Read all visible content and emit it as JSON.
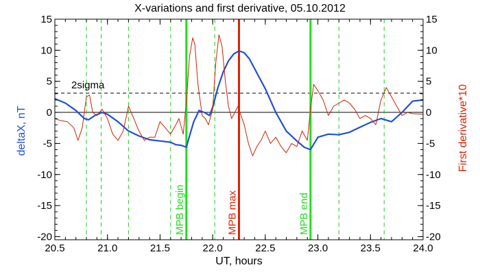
{
  "chart_data": {
    "type": "line",
    "title": "X-variations and first derivative, 05.10.2012",
    "xlabel": "UT, hours",
    "ylabel_left": "deltaX, nT",
    "ylabel_right": "First derivative*10",
    "xlim": [
      20.5,
      24.0
    ],
    "ylim": [
      -20.5,
      15
    ],
    "x_ticks": [
      20.5,
      21.0,
      21.5,
      22.0,
      22.5,
      23.0,
      23.5,
      24.0
    ],
    "x_tick_labels": [
      "20.5",
      "21.0",
      "21.5",
      "22.0",
      "22.5",
      "23.0",
      "23.5",
      "24.0"
    ],
    "y_ticks": [
      -20,
      -15,
      -10,
      -5,
      0,
      5,
      10,
      15
    ],
    "y_tick_labels": [
      "-20",
      "-15",
      "-10",
      "-5",
      "0",
      "5",
      "10",
      "15"
    ],
    "sigma_level": 3.1,
    "sigma_label": "2sigma",
    "colors": {
      "deltaX": "#1f4fd6",
      "derivative": "#cc2200",
      "mpb": "#22dd22",
      "max": "#dd2200",
      "dashed": "#22cc22"
    },
    "dashed_lines": [
      20.8,
      20.94,
      21.2,
      21.6,
      22.02,
      23.2,
      23.63
    ],
    "markers": [
      {
        "x": 21.75,
        "label": "MPB begin",
        "kind": "mpb"
      },
      {
        "x": 22.25,
        "label": "MPB max",
        "kind": "max"
      },
      {
        "x": 22.93,
        "label": "MPB end",
        "kind": "mpb"
      }
    ],
    "series": [
      {
        "name": "deltaX, nT",
        "x": [
          20.5,
          20.6,
          20.7,
          20.78,
          20.82,
          20.88,
          20.95,
          21.0,
          21.1,
          21.2,
          21.3,
          21.4,
          21.5,
          21.6,
          21.65,
          21.7,
          21.75,
          21.78,
          21.82,
          21.87,
          21.92,
          21.97,
          22.0,
          22.05,
          22.1,
          22.15,
          22.2,
          22.25,
          22.3,
          22.35,
          22.4,
          22.5,
          22.6,
          22.7,
          22.8,
          22.87,
          22.93,
          23.0,
          23.1,
          23.2,
          23.3,
          23.4,
          23.5,
          23.6,
          23.7,
          23.8,
          23.9,
          24.0
        ],
        "y": [
          2.2,
          1.5,
          0.3,
          -1.0,
          -1.2,
          -0.5,
          0.0,
          -0.3,
          -1.5,
          -3.0,
          -3.8,
          -4.4,
          -4.6,
          -4.8,
          -5.2,
          -5.3,
          -5.6,
          -3.8,
          -1.5,
          0.3,
          0.0,
          -0.5,
          0.8,
          4.0,
          6.5,
          8.3,
          9.4,
          9.9,
          9.6,
          8.6,
          7.0,
          3.8,
          0.0,
          -3.0,
          -4.6,
          -5.6,
          -6.0,
          -4.0,
          -3.5,
          -3.6,
          -3.2,
          -2.4,
          -1.6,
          -1.0,
          -1.5,
          0.0,
          1.8,
          2.0
        ]
      },
      {
        "name": "First derivative*10",
        "x": [
          20.5,
          20.55,
          20.62,
          20.68,
          20.72,
          20.76,
          20.8,
          20.83,
          20.86,
          20.9,
          20.95,
          21.0,
          21.05,
          21.1,
          21.15,
          21.2,
          21.25,
          21.3,
          21.35,
          21.4,
          21.45,
          21.5,
          21.55,
          21.6,
          21.65,
          21.68,
          21.72,
          21.75,
          21.78,
          21.81,
          21.83,
          21.86,
          21.9,
          21.93,
          21.96,
          22.0,
          22.03,
          22.06,
          22.09,
          22.12,
          22.15,
          22.18,
          22.21,
          22.24,
          22.27,
          22.3,
          22.34,
          22.38,
          22.42,
          22.46,
          22.5,
          22.55,
          22.6,
          22.65,
          22.7,
          22.75,
          22.8,
          22.85,
          22.9,
          22.93,
          22.96,
          23.0,
          23.05,
          23.1,
          23.15,
          23.2,
          23.25,
          23.3,
          23.35,
          23.4,
          23.45,
          23.5,
          23.55,
          23.6,
          23.65,
          23.7,
          23.75,
          23.8,
          23.85,
          23.9,
          24.0
        ],
        "y": [
          -1.0,
          -1.3,
          -1.5,
          -2.5,
          -4.5,
          -2.5,
          2.5,
          2.8,
          0.0,
          -0.5,
          0.5,
          -1.0,
          -3.5,
          -4.5,
          -3.0,
          1.0,
          -1.0,
          -3.0,
          -4.5,
          -4.0,
          -4.0,
          -1.5,
          -2.5,
          -3.5,
          -2.0,
          -1.0,
          -3.5,
          1.8,
          9.0,
          12.0,
          11.0,
          4.5,
          -0.5,
          -1.0,
          -2.0,
          0.5,
          8.0,
          12.5,
          10.5,
          5.0,
          1.0,
          -1.0,
          0.0,
          1.0,
          -0.5,
          -2.0,
          -5.0,
          -7.0,
          -5.5,
          -4.5,
          -3.0,
          -5.0,
          -4.0,
          -5.5,
          -6.5,
          -5.0,
          -5.5,
          -3.0,
          -4.5,
          0.5,
          4.5,
          3.5,
          2.0,
          -0.5,
          1.0,
          1.5,
          2.0,
          1.5,
          0.5,
          -1.0,
          -0.5,
          -1.0,
          -2.0,
          2.0,
          4.0,
          2.5,
          1.0,
          -0.5,
          0.0,
          -0.2,
          -0.3
        ]
      }
    ]
  }
}
